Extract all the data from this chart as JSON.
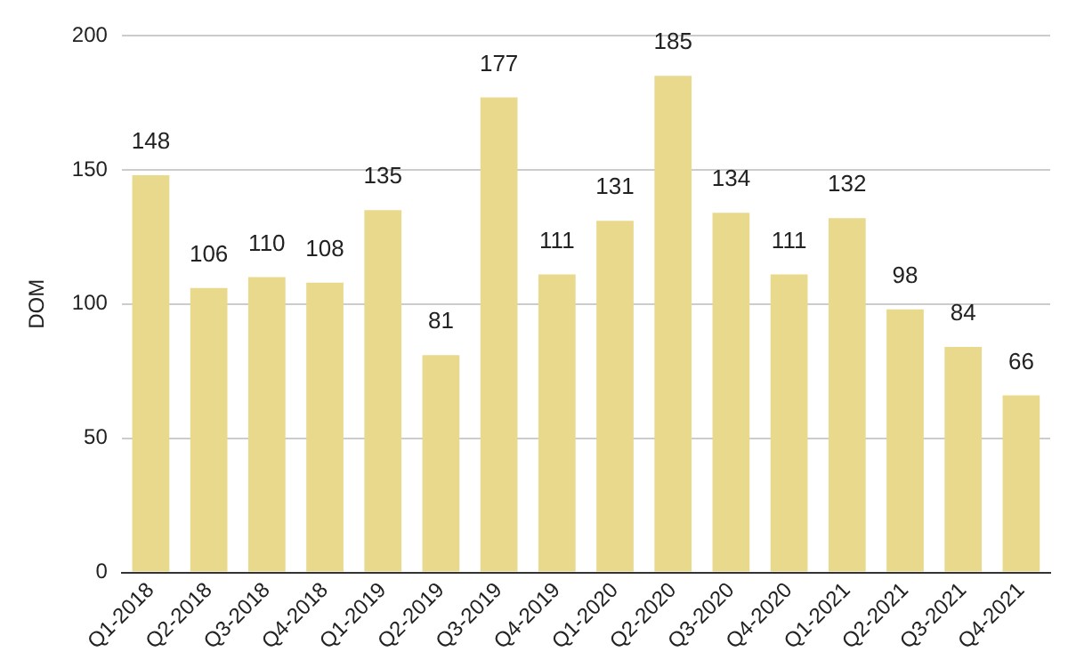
{
  "chart_data": {
    "type": "bar",
    "ylabel": "DOM",
    "categories": [
      "Q1-2018",
      "Q2-2018",
      "Q3-2018",
      "Q4-2018",
      "Q1-2019",
      "Q2-2019",
      "Q3-2019",
      "Q4-2019",
      "Q1-2020",
      "Q2-2020",
      "Q3-2020",
      "Q4-2020",
      "Q1-2021",
      "Q2-2021",
      "Q3-2021",
      "Q4-2021"
    ],
    "values": [
      148,
      106,
      110,
      108,
      135,
      81,
      177,
      111,
      131,
      185,
      134,
      111,
      132,
      98,
      84,
      66
    ],
    "color": "#e8d98c",
    "ylim": [
      0,
      200
    ],
    "yticks": [
      0,
      50,
      100,
      150,
      200
    ],
    "grid": "y",
    "data_labels": true
  }
}
